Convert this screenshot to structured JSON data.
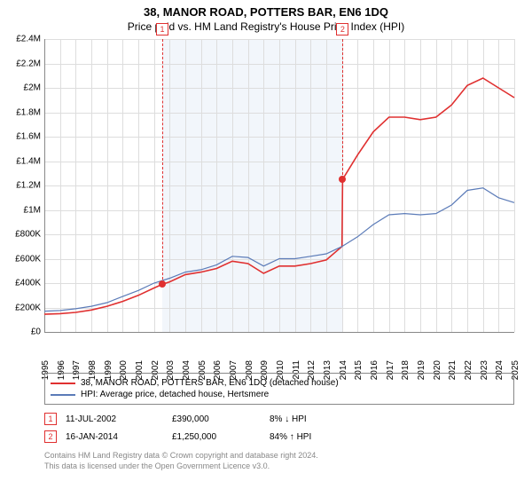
{
  "title": "38, MANOR ROAD, POTTERS BAR, EN6 1DQ",
  "subtitle": "Price paid vs. HM Land Registry's House Price Index (HPI)",
  "chart": {
    "type": "line",
    "background_color": "#ffffff",
    "grid_color": "#dddddd",
    "axis_color": "#888888",
    "band_fill": "#f2f6fb",
    "x_start": 1995,
    "x_end": 2025,
    "y_min": 0,
    "y_max": 2400000,
    "y_step": 200000,
    "y_ticks": [
      "£0",
      "£200K",
      "£400K",
      "£600K",
      "£800K",
      "£1M",
      "£1.2M",
      "£1.4M",
      "£1.6M",
      "£1.8M",
      "£2M",
      "£2.2M",
      "£2.4M"
    ],
    "x_ticks": [
      "1995",
      "1996",
      "1997",
      "1998",
      "1999",
      "2000",
      "2001",
      "2002",
      "2003",
      "2004",
      "2005",
      "2006",
      "2007",
      "2008",
      "2009",
      "2010",
      "2011",
      "2012",
      "2013",
      "2014",
      "2015",
      "2016",
      "2017",
      "2018",
      "2019",
      "2020",
      "2021",
      "2022",
      "2023",
      "2024",
      "2025"
    ],
    "band": {
      "from": 2002.53,
      "to": 2014.04
    },
    "series": [
      {
        "name": "38, MANOR ROAD, POTTERS BAR, EN6 1DQ (detached house)",
        "color": "#e03030",
        "width": 1.6,
        "segments": [
          {
            "x": [
              1995,
              1996,
              1997,
              1998,
              1999,
              2000,
              2001,
              2002,
              2002.53
            ],
            "y": [
              145000,
              150000,
              160000,
              180000,
              210000,
              250000,
              300000,
              360000,
              390000
            ]
          },
          {
            "x": [
              2002.53,
              2003,
              2004,
              2005,
              2006,
              2007,
              2008,
              2009,
              2010,
              2011,
              2012,
              2013,
              2014,
              2014.04
            ],
            "y": [
              390000,
              410000,
              470000,
              490000,
              520000,
              580000,
              560000,
              480000,
              540000,
              540000,
              560000,
              590000,
              700000,
              1250000
            ]
          },
          {
            "x": [
              2014.04,
              2015,
              2016,
              2017,
              2018,
              2019,
              2020,
              2021,
              2022,
              2023,
              2024,
              2025
            ],
            "y": [
              1250000,
              1450000,
              1640000,
              1760000,
              1760000,
              1740000,
              1760000,
              1860000,
              2020000,
              2080000,
              2000000,
              1920000
            ]
          }
        ]
      },
      {
        "name": "HPI: Average price, detached house, Hertsmere",
        "color": "#5b7bb8",
        "width": 1.2,
        "segments": [
          {
            "x": [
              1995,
              1996,
              1997,
              1998,
              1999,
              2000,
              2001,
              2002,
              2003,
              2004,
              2005,
              2006,
              2007,
              2008,
              2009,
              2010,
              2011,
              2012,
              2013,
              2014,
              2015,
              2016,
              2017,
              2018,
              2019,
              2020,
              2021,
              2022,
              2023,
              2024,
              2025
            ],
            "y": [
              170000,
              175000,
              190000,
              210000,
              240000,
              290000,
              340000,
              400000,
              440000,
              490000,
              510000,
              550000,
              620000,
              610000,
              540000,
              600000,
              600000,
              620000,
              640000,
              700000,
              780000,
              880000,
              960000,
              970000,
              960000,
              970000,
              1040000,
              1160000,
              1180000,
              1100000,
              1060000
            ]
          }
        ]
      }
    ],
    "markers": [
      {
        "label": "1",
        "x": 2002.53,
        "y": 390000,
        "dot_color": "#e03030"
      },
      {
        "label": "2",
        "x": 2014.04,
        "y": 1250000,
        "dot_color": "#e03030"
      }
    ]
  },
  "legend": {
    "items": [
      {
        "color": "#e03030",
        "label": "38, MANOR ROAD, POTTERS BAR, EN6 1DQ (detached house)"
      },
      {
        "color": "#5b7bb8",
        "label": "HPI: Average price, detached house, Hertsmere"
      }
    ]
  },
  "sales": [
    {
      "marker": "1",
      "date": "11-JUL-2002",
      "price": "£390,000",
      "diff": "8% ↓ HPI"
    },
    {
      "marker": "2",
      "date": "16-JAN-2014",
      "price": "£1,250,000",
      "diff": "84% ↑ HPI"
    }
  ],
  "footnote_l1": "Contains HM Land Registry data © Crown copyright and database right 2024.",
  "footnote_l2": "This data is licensed under the Open Government Licence v3.0."
}
